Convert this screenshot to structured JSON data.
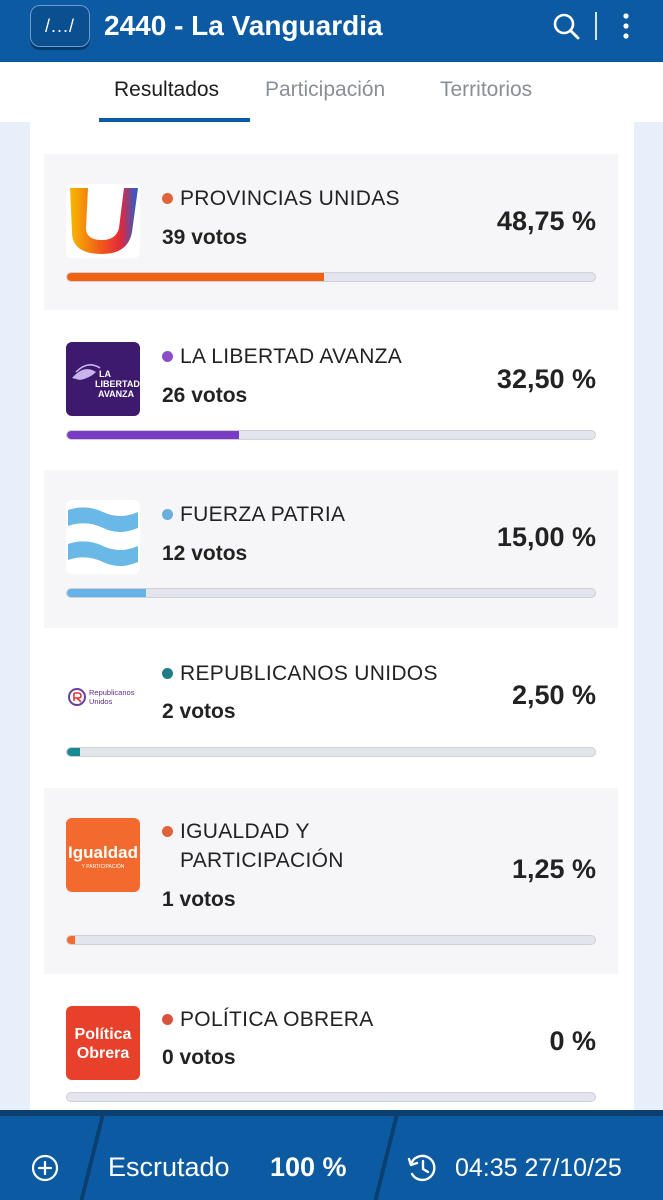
{
  "header": {
    "logo_text": "/.../",
    "title": "2440 - La Vanguardia"
  },
  "tabs": [
    {
      "label": "Resultados",
      "active": true
    },
    {
      "label": "Participación",
      "active": false
    },
    {
      "label": "Territorios",
      "active": false
    }
  ],
  "parties": [
    {
      "name": "PROVINCIAS UNIDAS",
      "votes": "39 votos",
      "percent": "48,75 %",
      "share": 48.75,
      "color": "#f26110",
      "dot_color": "#e0643a",
      "logo": "provincias-unidas-logo"
    },
    {
      "name": "LA LIBERTAD AVANZA",
      "votes": "26 votos",
      "percent": "32,50 %",
      "share": 32.5,
      "color": "#7a3cc2",
      "dot_color": "#8a4fc8",
      "logo": "la-libertad-avanza-logo",
      "logo_text": [
        "LA",
        "LIBERTAD",
        "AVANZA"
      ]
    },
    {
      "name": "FUERZA PATRIA",
      "votes": "12 votos",
      "percent": "15,00 %",
      "share": 15.0,
      "color": "#66b4e6",
      "dot_color": "#6aaedc",
      "logo": "fuerza-patria-logo"
    },
    {
      "name": "REPUBLICANOS UNIDOS",
      "votes": "2 votos",
      "percent": "2,50 %",
      "share": 2.5,
      "color": "#168a90",
      "dot_color": "#1d7d86",
      "logo": "republicanos-unidos-logo",
      "logo_text": [
        "Republicanos",
        "Unidos"
      ]
    },
    {
      "name": "IGUALDAD Y PARTICIPACIÓN",
      "name_lines": [
        "IGUALDAD Y",
        "PARTICIPACIÓN"
      ],
      "votes": "1 votos",
      "percent": "1,25 %",
      "share": 1.25,
      "color": "#f26a2d",
      "dot_color": "#e0643a",
      "logo": "igualdad-participacion-logo",
      "logo_text": [
        "Igualdad",
        "Y PARTICIPACIÓN"
      ]
    },
    {
      "name": "POLÍTICA OBRERA",
      "votes": "0 votos",
      "percent": "0 %",
      "share": 0,
      "color": "#e8412b",
      "dot_color": "#d9533a",
      "logo": "politica-obrera-logo",
      "logo_text": [
        "Política",
        "Obrera"
      ]
    }
  ],
  "footer": {
    "add_icon": "add-circle-icon",
    "scrutinized_label": "Escrutado",
    "scrutinized_value": "100 %",
    "clock_icon": "clock-refresh-icon",
    "timestamp": "04:35 27/10/25"
  }
}
